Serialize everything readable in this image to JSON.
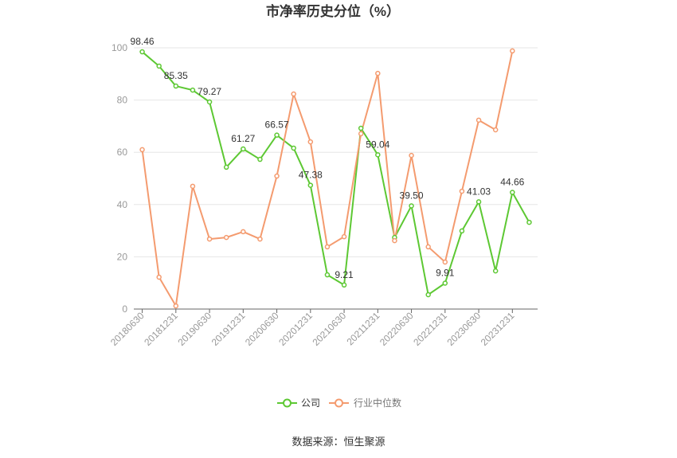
{
  "chart_data": {
    "type": "line",
    "title": "市净率历史分位（%）",
    "categories": [
      "20180630",
      "",
      "20181231",
      "",
      "20190630",
      "",
      "20191231",
      "",
      "20200630",
      "",
      "20201231",
      "",
      "20210630",
      "",
      "20211231",
      "",
      "20220630",
      "",
      "20221231",
      "",
      "20230630",
      "",
      "20231231",
      ""
    ],
    "ylim": [
      0,
      100
    ],
    "yticks": [
      0,
      20,
      40,
      60,
      80,
      100
    ],
    "grid": true,
    "legend": "bottom-center",
    "series": [
      {
        "name": "公司",
        "color": "#5dc833",
        "values": [
          98.46,
          93.0,
          85.35,
          83.8,
          79.27,
          54.3,
          61.27,
          57.3,
          66.57,
          61.6,
          47.38,
          13.1,
          9.21,
          69.2,
          59.04,
          27.4,
          39.5,
          5.5,
          9.91,
          29.9,
          41.03,
          14.6,
          44.66,
          33.2
        ],
        "data_labels": [
          "98.46",
          null,
          "85.35",
          null,
          "79.27",
          null,
          "61.27",
          null,
          "66.57",
          null,
          "47.38",
          null,
          "9.21",
          null,
          "59.04",
          null,
          "39.50",
          null,
          "9.91",
          null,
          "41.03",
          null,
          "44.66",
          null
        ]
      },
      {
        "name": "行业中位数",
        "color": "#f49b6f",
        "values": [
          61.0,
          12.2,
          1.2,
          47.0,
          26.8,
          27.4,
          29.6,
          26.8,
          50.9,
          82.3,
          64.0,
          23.8,
          27.7,
          67.1,
          90.2,
          26.2,
          58.8,
          23.8,
          18.0,
          45.1,
          72.3,
          68.6,
          98.8,
          null
        ]
      }
    ]
  },
  "source": "数据来源：恒生聚源"
}
